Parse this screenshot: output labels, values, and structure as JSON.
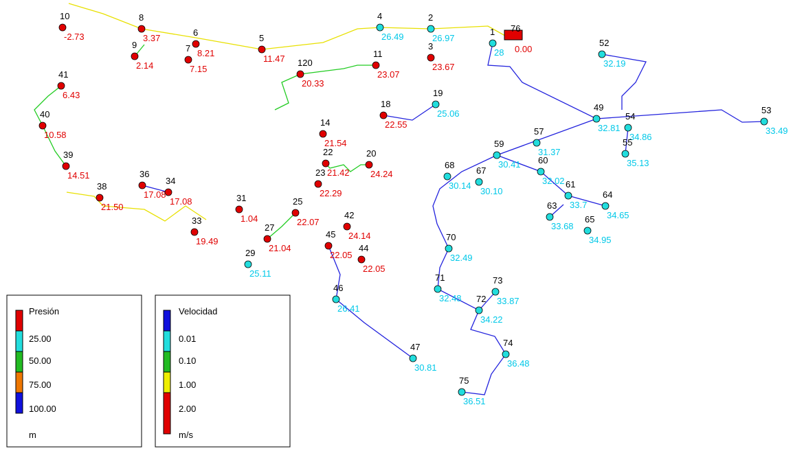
{
  "nodes": [
    {
      "label": "10",
      "value": "-2.73"
    },
    {
      "label": "8",
      "value": "3.37"
    },
    {
      "label": "9",
      "value": "2.14"
    },
    {
      "label": "6",
      "value": "8.21"
    },
    {
      "label": "7",
      "value": "7.15"
    },
    {
      "label": "5",
      "value": "11.47"
    },
    {
      "label": "4",
      "value": "26.49"
    },
    {
      "label": "2",
      "value": "26.97"
    },
    {
      "label": "3",
      "value": "23.67"
    },
    {
      "label": "1",
      "value": "28"
    },
    {
      "label": "76",
      "value": "0.00"
    },
    {
      "label": "11",
      "value": "23.07"
    },
    {
      "label": "120",
      "value": "20.33"
    },
    {
      "label": "41",
      "value": "6.43"
    },
    {
      "label": "40",
      "value": "10.58"
    },
    {
      "label": "39",
      "value": "14.51"
    },
    {
      "label": "38",
      "value": "21.50"
    },
    {
      "label": "36",
      "value": "17.08"
    },
    {
      "label": "34",
      "value": "17.08"
    },
    {
      "label": "33",
      "value": "19.49"
    },
    {
      "label": "31",
      "value": "1.04"
    },
    {
      "label": "29",
      "value": "25.11"
    },
    {
      "label": "27",
      "value": "21.04"
    },
    {
      "label": "25",
      "value": "22.07"
    },
    {
      "label": "23",
      "value": "22.29"
    },
    {
      "label": "22",
      "value": "21.42"
    },
    {
      "label": "20",
      "value": "24.24"
    },
    {
      "label": "18",
      "value": "22.55"
    },
    {
      "label": "19",
      "value": "25.06"
    },
    {
      "label": "14",
      "value": "21.54"
    },
    {
      "label": "42",
      "value": "24.14"
    },
    {
      "label": "45",
      "value": "22.05"
    },
    {
      "label": "44",
      "value": "22.05"
    },
    {
      "label": "46",
      "value": "26.41"
    },
    {
      "label": "47",
      "value": "30.81"
    },
    {
      "label": "52",
      "value": "32.19"
    },
    {
      "label": "49",
      "value": "32.81"
    },
    {
      "label": "53",
      "value": "33.49"
    },
    {
      "label": "54",
      "value": "34.86"
    },
    {
      "label": "55",
      "value": "35.13"
    },
    {
      "label": "57",
      "value": "31.37"
    },
    {
      "label": "59",
      "value": "30.41"
    },
    {
      "label": "60",
      "value": "32.02"
    },
    {
      "label": "61",
      "value": "33.7"
    },
    {
      "label": "63",
      "value": "33.68"
    },
    {
      "label": "64",
      "value": "34.65"
    },
    {
      "label": "65",
      "value": "34.95"
    },
    {
      "label": "67",
      "value": "30.10"
    },
    {
      "label": "68",
      "value": "30.14"
    },
    {
      "label": "70",
      "value": "32.49"
    },
    {
      "label": "71",
      "value": "32.48"
    },
    {
      "label": "73",
      "value": "33.87"
    },
    {
      "label": "72",
      "value": "34.22"
    },
    {
      "label": "74",
      "value": "36.48"
    },
    {
      "label": "75",
      "value": "36.51"
    }
  ],
  "legend_pressure": {
    "title": "Presión",
    "items": [
      "25.00",
      "50.00",
      "75.00",
      "100.00"
    ],
    "unit": "m"
  },
  "legend_velocity": {
    "title": "Velocidad",
    "items": [
      "0.01",
      "0.10",
      "1.00",
      "2.00"
    ],
    "unit": "m/s"
  }
}
